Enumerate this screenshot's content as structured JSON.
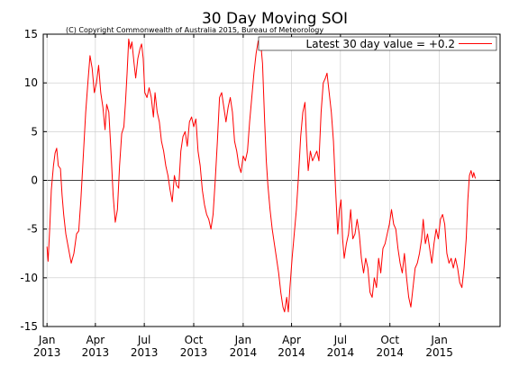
{
  "chart_data": {
    "type": "line",
    "title": "30 Day Moving SOI",
    "subtitle": "(C) Copyright Commonwealth of Australia 2015, Bureau of Meteorology",
    "xlabel": "",
    "ylabel": "",
    "ylim": [
      -15,
      15
    ],
    "yticks": [
      -15,
      -10,
      -5,
      0,
      5,
      10,
      15
    ],
    "x_range": [
      "2012-12-25",
      "2015-04-24"
    ],
    "xticks": [
      {
        "date": "2013-01-01",
        "label_month": "Jan",
        "label_year": "2013"
      },
      {
        "date": "2013-04-01",
        "label_month": "Apr",
        "label_year": "2013"
      },
      {
        "date": "2013-07-01",
        "label_month": "Jul",
        "label_year": "2013"
      },
      {
        "date": "2013-10-01",
        "label_month": "Oct",
        "label_year": "2013"
      },
      {
        "date": "2014-01-01",
        "label_month": "Jan",
        "label_year": "2014"
      },
      {
        "date": "2014-04-01",
        "label_month": "Apr",
        "label_year": "2014"
      },
      {
        "date": "2014-07-01",
        "label_month": "Jul",
        "label_year": "2014"
      },
      {
        "date": "2014-10-01",
        "label_month": "Oct",
        "label_year": "2014"
      },
      {
        "date": "2015-01-01",
        "label_month": "Jan",
        "label_year": "2015"
      }
    ],
    "grid": true,
    "legend_position": "top-right",
    "series": [
      {
        "name": "Latest 30 day value = +0.2",
        "color": "#ff0000",
        "points": [
          [
            "2013-01-01",
            -6.8
          ],
          [
            "2013-01-03",
            -8.3
          ],
          [
            "2013-01-06",
            -5.0
          ],
          [
            "2013-01-09",
            -1.0
          ],
          [
            "2013-01-13",
            1.5
          ],
          [
            "2013-01-16",
            2.8
          ],
          [
            "2013-01-19",
            3.3
          ],
          [
            "2013-01-22",
            1.5
          ],
          [
            "2013-01-26",
            1.2
          ],
          [
            "2013-01-29",
            -1.5
          ],
          [
            "2013-02-01",
            -3.5
          ],
          [
            "2013-02-05",
            -5.5
          ],
          [
            "2013-02-10",
            -7.0
          ],
          [
            "2013-02-15",
            -8.5
          ],
          [
            "2013-02-20",
            -7.5
          ],
          [
            "2013-02-25",
            -5.5
          ],
          [
            "2013-03-01",
            -5.2
          ],
          [
            "2013-03-05",
            -2.0
          ],
          [
            "2013-03-10",
            3.0
          ],
          [
            "2013-03-14",
            7.0
          ],
          [
            "2013-03-18",
            10.0
          ],
          [
            "2013-03-22",
            12.8
          ],
          [
            "2013-03-26",
            11.5
          ],
          [
            "2013-03-30",
            9.0
          ],
          [
            "2013-04-03",
            10.0
          ],
          [
            "2013-04-07",
            11.8
          ],
          [
            "2013-04-11",
            9.0
          ],
          [
            "2013-04-15",
            7.5
          ],
          [
            "2013-04-19",
            5.2
          ],
          [
            "2013-04-22",
            7.8
          ],
          [
            "2013-04-26",
            7.0
          ],
          [
            "2013-04-30",
            3.0
          ],
          [
            "2013-05-04",
            -1.5
          ],
          [
            "2013-05-08",
            -4.3
          ],
          [
            "2013-05-12",
            -3.0
          ],
          [
            "2013-05-16",
            1.5
          ],
          [
            "2013-05-20",
            4.8
          ],
          [
            "2013-05-24",
            5.5
          ],
          [
            "2013-05-27",
            8.0
          ],
          [
            "2013-05-30",
            11.0
          ],
          [
            "2013-06-02",
            14.5
          ],
          [
            "2013-06-05",
            13.5
          ],
          [
            "2013-06-08",
            14.2
          ],
          [
            "2013-06-12",
            12.0
          ],
          [
            "2013-06-15",
            10.5
          ],
          [
            "2013-06-19",
            12.5
          ],
          [
            "2013-06-23",
            13.5
          ],
          [
            "2013-06-26",
            14.0
          ],
          [
            "2013-06-29",
            12.5
          ],
          [
            "2013-07-02",
            9.0
          ],
          [
            "2013-07-06",
            8.5
          ],
          [
            "2013-07-10",
            9.5
          ],
          [
            "2013-07-14",
            8.5
          ],
          [
            "2013-07-18",
            6.5
          ],
          [
            "2013-07-21",
            9.0
          ],
          [
            "2013-07-25",
            7.0
          ],
          [
            "2013-07-29",
            6.0
          ],
          [
            "2013-08-02",
            4.0
          ],
          [
            "2013-08-06",
            3.0
          ],
          [
            "2013-08-10",
            1.5
          ],
          [
            "2013-08-14",
            0.5
          ],
          [
            "2013-08-18",
            -1.0
          ],
          [
            "2013-08-22",
            -2.2
          ],
          [
            "2013-08-26",
            0.5
          ],
          [
            "2013-08-30",
            -0.5
          ],
          [
            "2013-09-03",
            -0.8
          ],
          [
            "2013-09-07",
            3.0
          ],
          [
            "2013-09-11",
            4.5
          ],
          [
            "2013-09-15",
            5.0
          ],
          [
            "2013-09-19",
            3.5
          ],
          [
            "2013-09-23",
            6.0
          ],
          [
            "2013-09-27",
            6.5
          ],
          [
            "2013-10-01",
            5.5
          ],
          [
            "2013-10-05",
            6.3
          ],
          [
            "2013-10-09",
            3.0
          ],
          [
            "2013-10-13",
            1.5
          ],
          [
            "2013-10-17",
            -1.0
          ],
          [
            "2013-10-21",
            -2.5
          ],
          [
            "2013-10-25",
            -3.5
          ],
          [
            "2013-10-29",
            -4.0
          ],
          [
            "2013-11-02",
            -5.0
          ],
          [
            "2013-11-06",
            -3.5
          ],
          [
            "2013-11-10",
            0.0
          ],
          [
            "2013-11-14",
            4.0
          ],
          [
            "2013-11-18",
            8.5
          ],
          [
            "2013-11-22",
            9.0
          ],
          [
            "2013-11-26",
            7.5
          ],
          [
            "2013-11-30",
            6.0
          ],
          [
            "2013-12-04",
            7.5
          ],
          [
            "2013-12-08",
            8.5
          ],
          [
            "2013-12-12",
            7.0
          ],
          [
            "2013-12-16",
            4.0
          ],
          [
            "2013-12-20",
            3.0
          ],
          [
            "2013-12-24",
            1.5
          ],
          [
            "2013-12-28",
            0.8
          ],
          [
            "2014-01-01",
            2.5
          ],
          [
            "2014-01-05",
            2.0
          ],
          [
            "2014-01-09",
            3.0
          ],
          [
            "2014-01-13",
            6.0
          ],
          [
            "2014-01-17",
            8.5
          ],
          [
            "2014-01-21",
            11.0
          ],
          [
            "2014-01-25",
            13.0
          ],
          [
            "2014-01-29",
            14.3
          ],
          [
            "2014-02-02",
            14.5
          ],
          [
            "2014-02-06",
            12.0
          ],
          [
            "2014-02-10",
            6.0
          ],
          [
            "2014-02-13",
            2.0
          ],
          [
            "2014-02-16",
            -0.5
          ],
          [
            "2014-02-20",
            -3.0
          ],
          [
            "2014-02-24",
            -5.0
          ],
          [
            "2014-02-28",
            -6.5
          ],
          [
            "2014-03-04",
            -8.0
          ],
          [
            "2014-03-08",
            -9.5
          ],
          [
            "2014-03-12",
            -11.5
          ],
          [
            "2014-03-16",
            -13.0
          ],
          [
            "2014-03-19",
            -13.5
          ],
          [
            "2014-03-23",
            -12.0
          ],
          [
            "2014-03-26",
            -13.5
          ],
          [
            "2014-03-29",
            -11.0
          ],
          [
            "2014-04-02",
            -8.0
          ],
          [
            "2014-04-06",
            -5.5
          ],
          [
            "2014-04-10",
            -3.0
          ],
          [
            "2014-04-14",
            0.5
          ],
          [
            "2014-04-18",
            4.5
          ],
          [
            "2014-04-22",
            7.0
          ],
          [
            "2014-04-26",
            8.0
          ],
          [
            "2014-04-29",
            4.0
          ],
          [
            "2014-05-02",
            1.0
          ],
          [
            "2014-05-06",
            3.0
          ],
          [
            "2014-05-10",
            2.0
          ],
          [
            "2014-05-14",
            2.5
          ],
          [
            "2014-05-18",
            3.0
          ],
          [
            "2014-05-22",
            2.0
          ],
          [
            "2014-05-26",
            7.0
          ],
          [
            "2014-05-30",
            10.0
          ],
          [
            "2014-06-03",
            10.5
          ],
          [
            "2014-06-06",
            11.0
          ],
          [
            "2014-06-10",
            9.0
          ],
          [
            "2014-06-14",
            7.0
          ],
          [
            "2014-06-18",
            4.0
          ],
          [
            "2014-06-22",
            -1.0
          ],
          [
            "2014-06-26",
            -5.5
          ],
          [
            "2014-06-29",
            -3.0
          ],
          [
            "2014-07-02",
            -2.0
          ],
          [
            "2014-07-05",
            -6.0
          ],
          [
            "2014-07-08",
            -8.0
          ],
          [
            "2014-07-12",
            -6.5
          ],
          [
            "2014-07-16",
            -5.5
          ],
          [
            "2014-07-20",
            -3.0
          ],
          [
            "2014-07-24",
            -6.0
          ],
          [
            "2014-07-28",
            -5.5
          ],
          [
            "2014-08-01",
            -4.0
          ],
          [
            "2014-08-05",
            -5.5
          ],
          [
            "2014-08-09",
            -8.0
          ],
          [
            "2014-08-13",
            -9.5
          ],
          [
            "2014-08-17",
            -8.0
          ],
          [
            "2014-08-21",
            -9.0
          ],
          [
            "2014-08-25",
            -11.5
          ],
          [
            "2014-08-29",
            -12.0
          ],
          [
            "2014-09-02",
            -10.0
          ],
          [
            "2014-09-06",
            -11.0
          ],
          [
            "2014-09-10",
            -8.0
          ],
          [
            "2014-09-14",
            -9.5
          ],
          [
            "2014-09-18",
            -7.0
          ],
          [
            "2014-09-22",
            -6.5
          ],
          [
            "2014-09-26",
            -5.5
          ],
          [
            "2014-09-30",
            -4.5
          ],
          [
            "2014-10-04",
            -3.0
          ],
          [
            "2014-10-08",
            -4.5
          ],
          [
            "2014-10-12",
            -5.0
          ],
          [
            "2014-10-16",
            -7.0
          ],
          [
            "2014-10-20",
            -8.5
          ],
          [
            "2014-10-24",
            -9.5
          ],
          [
            "2014-10-28",
            -7.5
          ],
          [
            "2014-11-01",
            -10.0
          ],
          [
            "2014-11-05",
            -12.0
          ],
          [
            "2014-11-09",
            -13.0
          ],
          [
            "2014-11-13",
            -11.0
          ],
          [
            "2014-11-17",
            -9.0
          ],
          [
            "2014-11-21",
            -8.5
          ],
          [
            "2014-11-25",
            -7.5
          ],
          [
            "2014-11-29",
            -6.0
          ],
          [
            "2014-12-02",
            -4.0
          ],
          [
            "2014-12-06",
            -6.5
          ],
          [
            "2014-12-10",
            -5.5
          ],
          [
            "2014-12-14",
            -7.0
          ],
          [
            "2014-12-18",
            -8.5
          ],
          [
            "2014-12-22",
            -6.5
          ],
          [
            "2014-12-26",
            -5.0
          ],
          [
            "2014-12-30",
            -6.0
          ],
          [
            "2015-01-03",
            -4.0
          ],
          [
            "2015-01-07",
            -3.5
          ],
          [
            "2015-01-11",
            -4.5
          ],
          [
            "2015-01-15",
            -7.5
          ],
          [
            "2015-01-19",
            -8.5
          ],
          [
            "2015-01-23",
            -8.0
          ],
          [
            "2015-01-27",
            -9.0
          ],
          [
            "2015-01-31",
            -8.0
          ],
          [
            "2015-02-04",
            -9.0
          ],
          [
            "2015-02-08",
            -10.5
          ],
          [
            "2015-02-12",
            -11.0
          ],
          [
            "2015-02-16",
            -9.0
          ],
          [
            "2015-02-20",
            -6.0
          ],
          [
            "2015-02-23",
            -2.0
          ],
          [
            "2015-02-26",
            0.5
          ],
          [
            "2015-03-01",
            1.0
          ],
          [
            "2015-03-04",
            0.3
          ],
          [
            "2015-03-06",
            0.8
          ],
          [
            "2015-03-09",
            0.2
          ]
        ]
      }
    ]
  }
}
